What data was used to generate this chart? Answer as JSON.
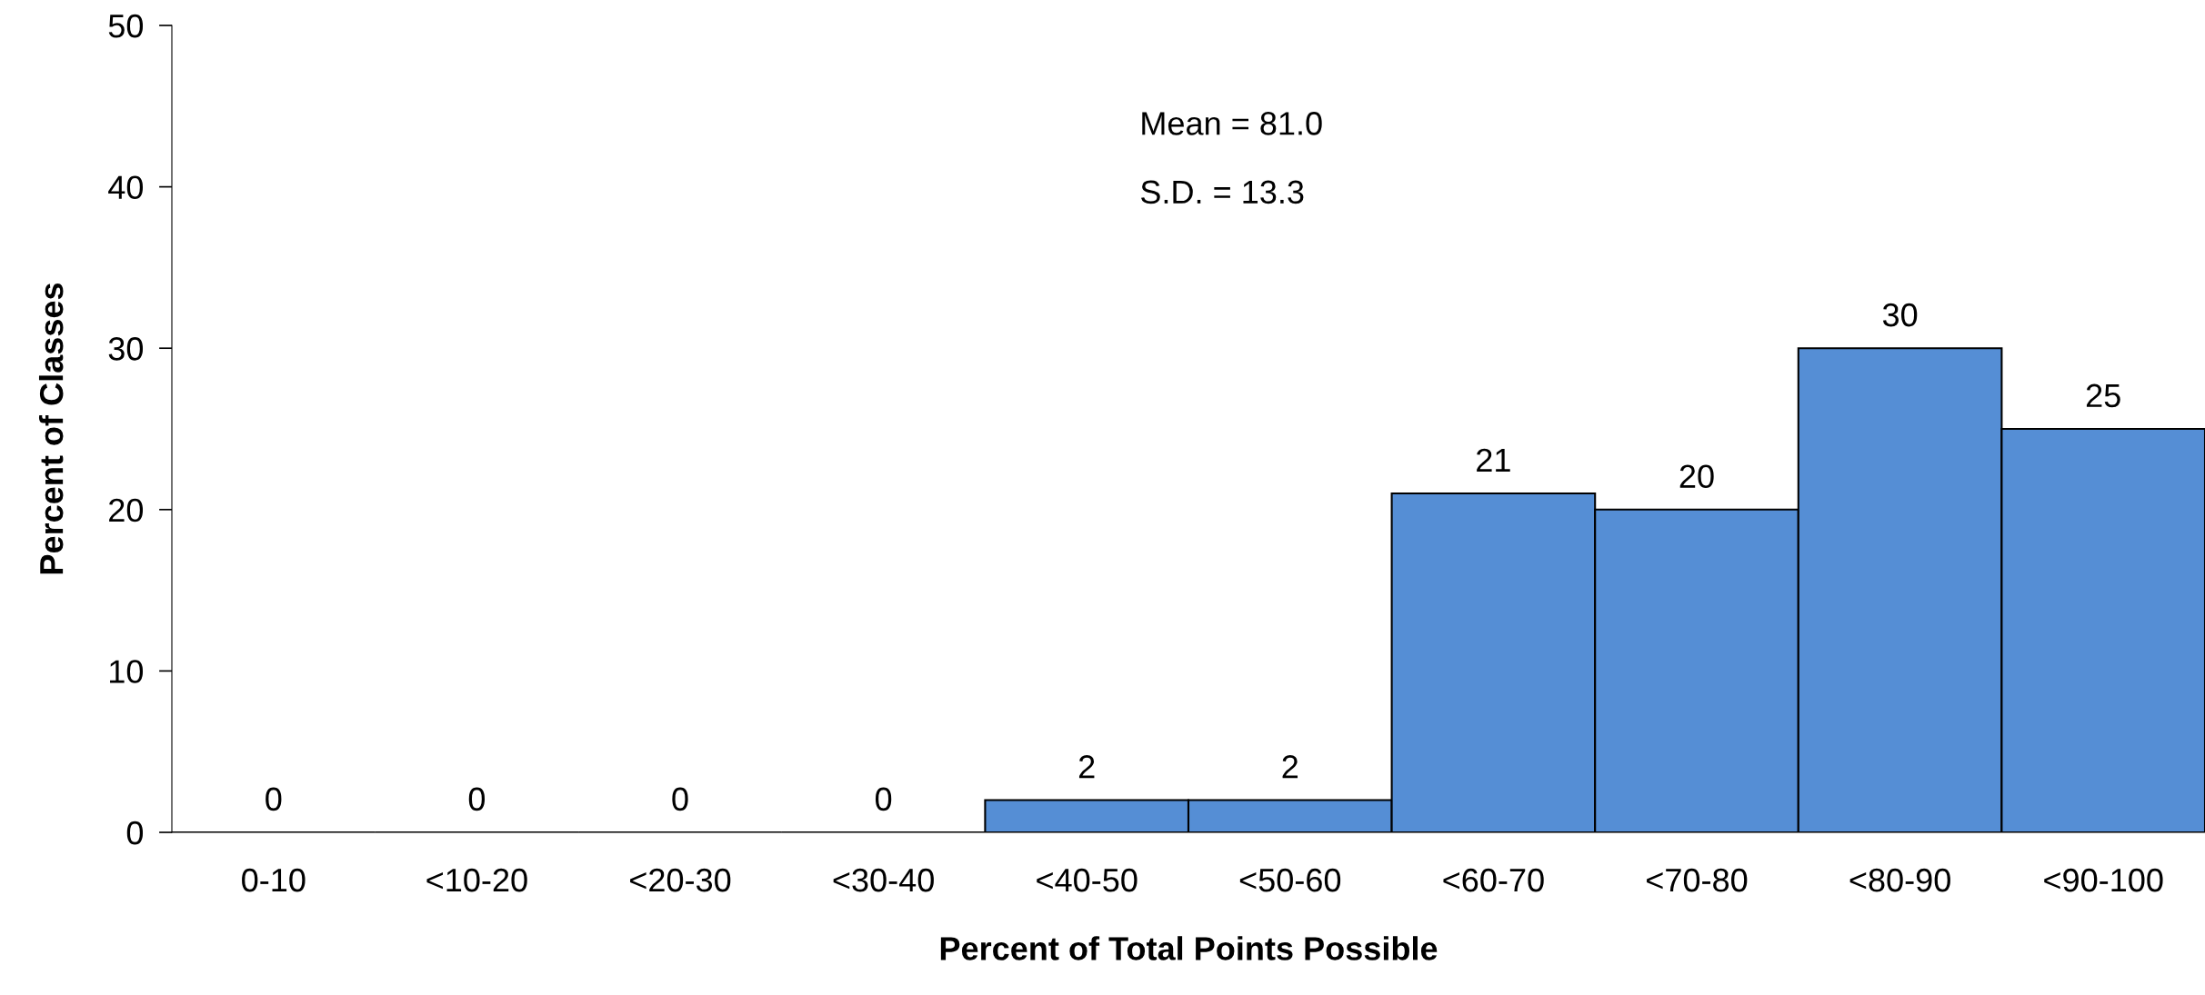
{
  "chart_data": {
    "type": "bar",
    "xlabel": "Percent of Total Points Possible",
    "ylabel": "Percent of Classes",
    "categories": [
      "0-10",
      "<10-20",
      "<20-30",
      "<30-40",
      "<40-50",
      "<50-60",
      "<60-70",
      "<70-80",
      "<80-90",
      "<90-100"
    ],
    "values": [
      0,
      0,
      0,
      0,
      2,
      2,
      21,
      20,
      30,
      25
    ],
    "color": "#558ed5",
    "ylim": [
      0,
      50
    ],
    "yticks": [
      0,
      10,
      20,
      30,
      40,
      50
    ],
    "grid": false,
    "legend": false,
    "data_labels": true,
    "annotations": [
      "Mean = 81.0",
      "S.D. = 13.3"
    ]
  }
}
